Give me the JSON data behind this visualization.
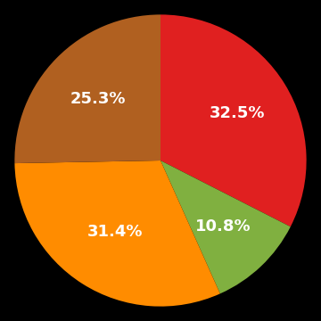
{
  "values": [
    32.5,
    10.8,
    31.4,
    25.3
  ],
  "colors": [
    "#e02020",
    "#80b040",
    "#ff8c00",
    "#b06020"
  ],
  "labels": [
    "32.5%",
    "10.8%",
    "31.4%",
    "25.3%"
  ],
  "background_color": "#000000",
  "label_fontsize": 13,
  "label_color": "#ffffff",
  "startangle": 90
}
